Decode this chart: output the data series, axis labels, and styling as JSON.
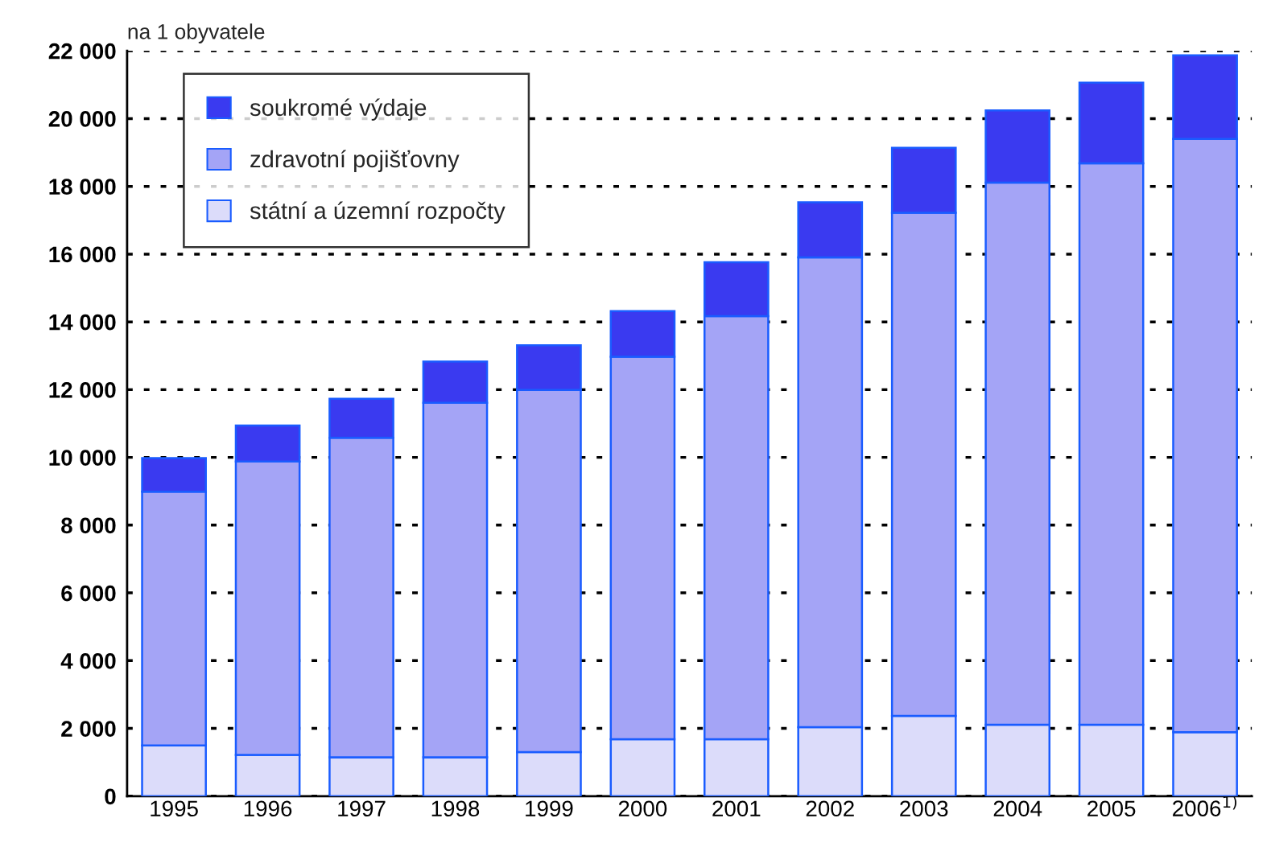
{
  "chart_data": {
    "type": "bar",
    "stacked": true,
    "ylabel": "na 1 obyvatele",
    "categories": [
      "1995",
      "1996",
      "1997",
      "1998",
      "1999",
      "2000",
      "2001",
      "2002",
      "2003",
      "2004",
      "2005",
      "2006$^{1)}$"
    ],
    "series": [
      {
        "name": "státní a územní rozpočty",
        "color": "#dcdcfa",
        "values": [
          1500,
          1220,
          1150,
          1150,
          1300,
          1680,
          1680,
          2040,
          2370,
          2110,
          2110,
          1890
        ]
      },
      {
        "name": "zdravotní pojišťovny",
        "color": "#a4a4f6",
        "values": [
          7490,
          8660,
          9430,
          10460,
          10690,
          11290,
          12490,
          13860,
          14850,
          16000,
          16570,
          17510
        ]
      },
      {
        "name": "soukromé výdaje",
        "color": "#3a3af0",
        "values": [
          990,
          1060,
          1150,
          1220,
          1320,
          1350,
          1590,
          1630,
          1920,
          2130,
          2380,
          2470
        ]
      }
    ],
    "ylim": [
      0,
      22000
    ],
    "yticks": [
      0,
      {
        "value": 2000,
        "label": "2 000"
      },
      {
        "value": 4000,
        "label": "4 000"
      },
      {
        "value": 6000,
        "label": "6 000"
      },
      {
        "value": 8000,
        "label": "8 000"
      },
      {
        "value": 10000,
        "label": "10 000"
      },
      {
        "value": 12000,
        "label": "12 000"
      },
      {
        "value": 14000,
        "label": "14 000"
      },
      {
        "value": 16000,
        "label": "16 000"
      },
      {
        "value": 18000,
        "label": "18 000"
      },
      {
        "value": 20000,
        "label": "20 000"
      },
      {
        "value": 22000,
        "label": "22 000"
      }
    ],
    "grid": "y",
    "legend": "top left"
  }
}
